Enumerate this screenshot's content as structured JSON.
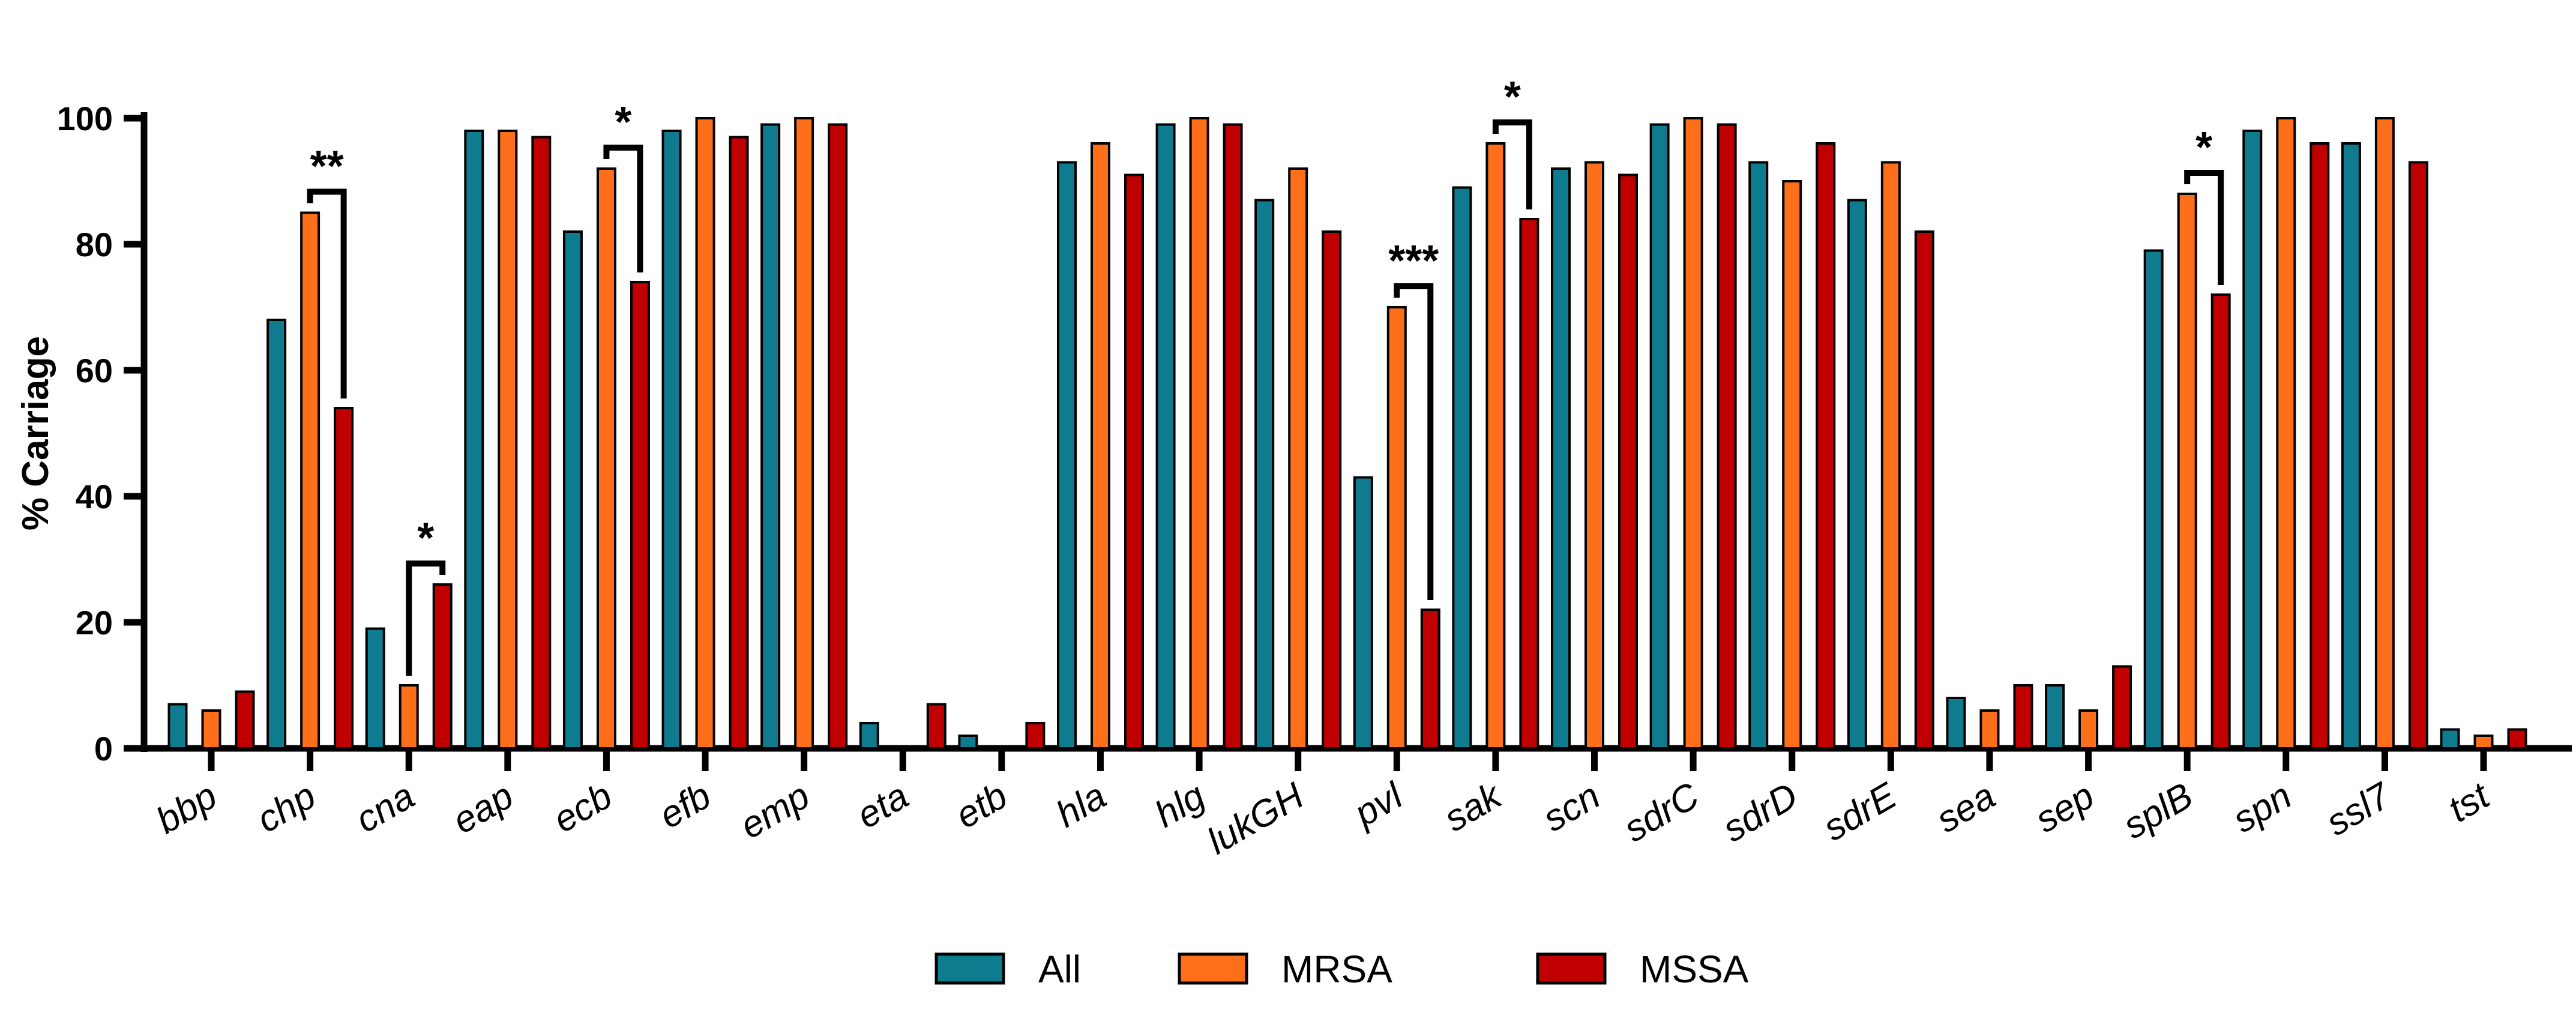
{
  "chart_data": {
    "type": "bar",
    "title": "",
    "xlabel": "",
    "ylabel": "% Carriage",
    "ylim": [
      0,
      100
    ],
    "yticks": [
      0,
      20,
      40,
      60,
      80,
      100
    ],
    "grid": false,
    "legend_position": "bottom-center",
    "categories": [
      "bbp",
      "chp",
      "cna",
      "eap",
      "ecb",
      "efb",
      "emp",
      "eta",
      "etb",
      "hla",
      "hlg",
      "lukGH",
      "pvl",
      "sak",
      "scn",
      "sdrC",
      "sdrD",
      "sdrE",
      "sea",
      "sep",
      "splB",
      "spn",
      "ssl7",
      "tst"
    ],
    "series": [
      {
        "name": "All",
        "color": "#0E7C8E",
        "values": [
          7,
          68,
          19,
          98,
          82,
          98,
          99,
          4,
          2,
          93,
          99,
          87,
          43,
          89,
          92,
          99,
          93,
          87,
          8,
          10,
          79,
          98,
          96,
          3
        ]
      },
      {
        "name": "MRSA",
        "color": "#FF6F1A",
        "values": [
          6,
          85,
          10,
          98,
          92,
          100,
          100,
          0,
          0,
          96,
          100,
          92,
          70,
          96,
          93,
          100,
          90,
          93,
          6,
          6,
          88,
          100,
          100,
          2
        ]
      },
      {
        "name": "MSSA",
        "color": "#C00000",
        "values": [
          9,
          54,
          26,
          97,
          74,
          97,
          99,
          7,
          4,
          91,
          99,
          82,
          22,
          84,
          91,
          99,
          96,
          82,
          10,
          13,
          72,
          96,
          93,
          3
        ]
      }
    ],
    "significance": [
      {
        "category": "chp",
        "label": "**",
        "from_series": "MRSA",
        "to_series": "MSSA"
      },
      {
        "category": "cna",
        "label": "*",
        "from_series": "MRSA",
        "to_series": "MSSA"
      },
      {
        "category": "ecb",
        "label": "*",
        "from_series": "MRSA",
        "to_series": "MSSA"
      },
      {
        "category": "pvl",
        "label": "***",
        "from_series": "MRSA",
        "to_series": "MSSA"
      },
      {
        "category": "sak",
        "label": "*",
        "from_series": "MRSA",
        "to_series": "MSSA"
      },
      {
        "category": "splB",
        "label": "*",
        "from_series": "MRSA",
        "to_series": "MSSA"
      }
    ]
  }
}
